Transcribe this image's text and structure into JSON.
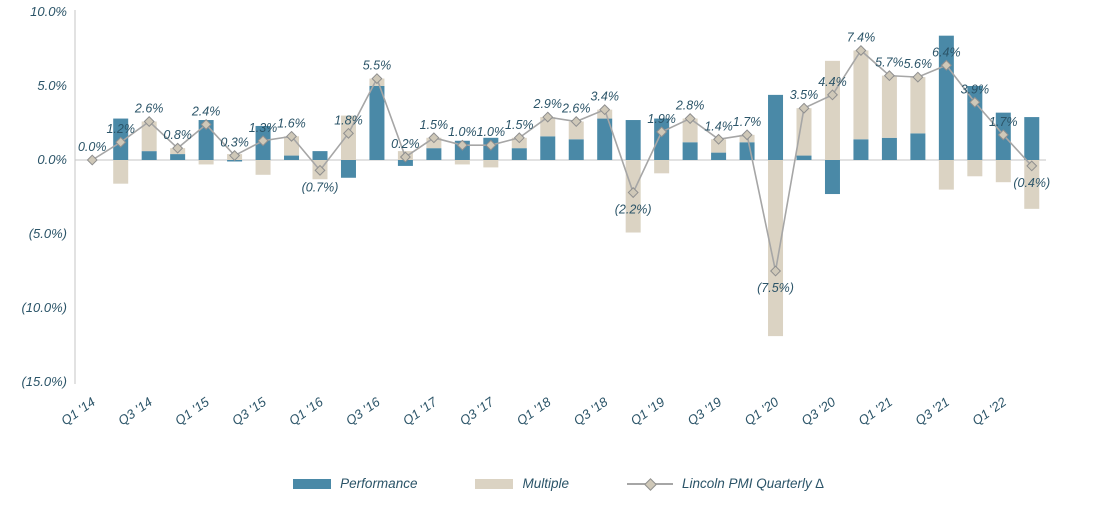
{
  "chart_data": {
    "type": "combo-bar-line",
    "title": "",
    "stacked": true,
    "grid": false,
    "legend_position": "bottom",
    "text_color": "#2B5468",
    "axis_color": "#C6C6C6",
    "ylim": [
      -15,
      10
    ],
    "x_tick_every": 2,
    "categories": [
      "Q1 '14",
      "Q2 '14",
      "Q3 '14",
      "Q4 '14",
      "Q1 '15",
      "Q2 '15",
      "Q3 '15",
      "Q4 '15",
      "Q1 '16",
      "Q2 '16",
      "Q3 '16",
      "Q4 '16",
      "Q1 '17",
      "Q2 '17",
      "Q3 '17",
      "Q4 '17",
      "Q1 '18",
      "Q2 '18",
      "Q3 '18",
      "Q4 '18",
      "Q1 '19",
      "Q2 '19",
      "Q3 '19",
      "Q4 '19",
      "Q1 '20",
      "Q2 '20",
      "Q3 '20",
      "Q4 '20",
      "Q1 '21",
      "Q2 '21",
      "Q3 '21",
      "Q4 '21",
      "Q1 '22",
      "Q2 '22"
    ],
    "y_ticks": [
      {
        "value": 10,
        "label": "10.0%"
      },
      {
        "value": 5,
        "label": "5.0%"
      },
      {
        "value": 0,
        "label": "0.0%"
      },
      {
        "value": -5,
        "label": "(5.0%)"
      },
      {
        "value": -10,
        "label": "(10.0%)"
      },
      {
        "value": -15,
        "label": "(15.0%)"
      }
    ],
    "series": [
      {
        "name": "Performance",
        "type": "bar",
        "color": "#4A89A7",
        "values": [
          0.0,
          2.8,
          0.6,
          0.4,
          2.7,
          -0.1,
          2.3,
          0.3,
          0.6,
          -1.2,
          5.0,
          -0.4,
          0.8,
          1.3,
          1.5,
          0.8,
          1.6,
          1.4,
          2.8,
          2.7,
          2.8,
          1.2,
          0.5,
          1.2,
          4.4,
          0.3,
          -2.3,
          1.4,
          1.5,
          1.8,
          8.4,
          5.0,
          3.2,
          2.9
        ]
      },
      {
        "name": "Multiple",
        "type": "bar",
        "color": "#DBD3C3",
        "values": [
          0.0,
          -1.6,
          2.0,
          0.4,
          -0.3,
          0.4,
          -1.0,
          1.3,
          -1.3,
          3.0,
          0.5,
          0.6,
          0.7,
          -0.3,
          -0.5,
          0.7,
          1.3,
          1.2,
          0.6,
          -4.9,
          -0.9,
          1.6,
          0.9,
          0.5,
          -11.9,
          3.2,
          6.7,
          6.0,
          4.2,
          3.8,
          -2.0,
          -1.1,
          -1.5,
          -3.3
        ]
      },
      {
        "name": "Lincoln PMI Quarterly ∆",
        "type": "line",
        "color": "#A6A6A6",
        "marker": "diamond",
        "marker_fill": "#CFC8B8",
        "marker_stroke": "#8F8F8F",
        "values": [
          0.0,
          1.2,
          2.6,
          0.8,
          2.4,
          0.3,
          1.3,
          1.6,
          -0.7,
          1.8,
          5.5,
          0.2,
          1.5,
          1.0,
          1.0,
          1.5,
          2.9,
          2.6,
          3.4,
          -2.2,
          1.9,
          2.8,
          1.4,
          1.7,
          -7.5,
          3.5,
          4.4,
          7.4,
          5.7,
          5.6,
          6.4,
          3.9,
          1.7,
          -0.4
        ],
        "labels": [
          "0.0%",
          "1.2%",
          "2.6%",
          "0.8%",
          "2.4%",
          "0.3%",
          "1.3%",
          "1.6%",
          "(0.7%)",
          "1.8%",
          "5.5%",
          "0.2%",
          "1.5%",
          "1.0%",
          "1.0%",
          "1.5%",
          "2.9%",
          "2.6%",
          "3.4%",
          "(2.2%)",
          "1.9%",
          "2.8%",
          "1.4%",
          "1.7%",
          "(7.5%)",
          "3.5%",
          "4.4%",
          "7.4%",
          "5.7%",
          "5.6%",
          "6.4%",
          "3.9%",
          "1.7%",
          "(0.4%)"
        ]
      }
    ]
  }
}
